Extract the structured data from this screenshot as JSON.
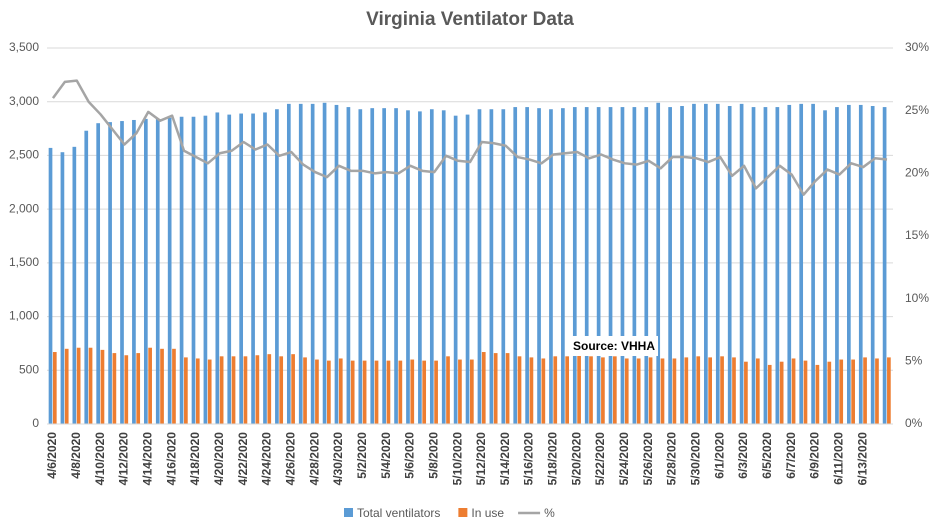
{
  "chart_data": {
    "type": "bar-line",
    "title": "Virginia Ventilator Data",
    "categories": [
      "4/6/2020",
      null,
      "4/8/2020",
      null,
      "4/10/2020",
      null,
      "4/12/2020",
      null,
      "4/14/2020",
      null,
      "4/16/2020",
      null,
      "4/18/2020",
      null,
      "4/20/2020",
      null,
      "4/22/2020",
      null,
      "4/24/2020",
      null,
      "4/26/2020",
      null,
      "4/28/2020",
      null,
      "4/30/2020",
      null,
      "5/2/2020",
      null,
      "5/4/2020",
      null,
      "5/6/2020",
      null,
      "5/8/2020",
      null,
      "5/10/2020",
      null,
      "5/12/2020",
      null,
      "5/14/2020",
      null,
      "5/16/2020",
      null,
      "5/18/2020",
      null,
      "5/20/2020",
      null,
      "5/22/2020",
      null,
      "5/24/2020",
      null,
      "5/26/2020",
      null,
      "5/28/2020",
      null,
      "5/30/2020",
      null,
      "6/1/2020",
      null,
      "6/3/2020",
      null,
      "6/5/2020",
      null,
      "6/7/2020",
      null,
      "6/9/2020",
      null,
      "6/11/2020",
      null,
      "6/13/2020",
      null,
      null
    ],
    "series": [
      {
        "name": "Total ventilators",
        "color": "#5b9bd5",
        "kind": "bar",
        "values": [
          2570,
          2530,
          2580,
          2730,
          2800,
          2810,
          2820,
          2830,
          2840,
          2840,
          2850,
          2860,
          2860,
          2870,
          2900,
          2880,
          2890,
          2890,
          2900,
          2930,
          2980,
          2980,
          2980,
          2990,
          2970,
          2950,
          2930,
          2940,
          2940,
          2940,
          2920,
          2910,
          2930,
          2920,
          2870,
          2880,
          2930,
          2930,
          2930,
          2950,
          2950,
          2940,
          2930,
          2940,
          2950,
          2950,
          2950,
          2950,
          2950,
          2950,
          2950,
          2990,
          2950,
          2960,
          2980,
          2980,
          2980,
          2960,
          2980,
          2950,
          2950,
          2950,
          2970,
          2980,
          2980,
          2920,
          2950,
          2970,
          2970,
          2960,
          2950
        ]
      },
      {
        "name": "In use",
        "color": "#ed7d31",
        "kind": "bar",
        "values": [
          670,
          700,
          710,
          710,
          690,
          660,
          640,
          660,
          710,
          700,
          700,
          620,
          610,
          600,
          630,
          630,
          630,
          640,
          650,
          630,
          650,
          620,
          600,
          590,
          610,
          590,
          590,
          590,
          590,
          590,
          600,
          590,
          590,
          630,
          600,
          600,
          670,
          660,
          660,
          630,
          620,
          610,
          630,
          630,
          640,
          630,
          620,
          630,
          610,
          610,
          620,
          610,
          610,
          620,
          630,
          620,
          630,
          620,
          580,
          610,
          550,
          580,
          610,
          590,
          550,
          580,
          600,
          600,
          620,
          610,
          620
        ]
      },
      {
        "name": "%",
        "color": "#a5a5a5",
        "kind": "line",
        "axis": "y2",
        "values": [
          26.0,
          27.3,
          27.4,
          25.7,
          24.7,
          23.5,
          22.3,
          23.2,
          24.9,
          24.2,
          24.6,
          21.8,
          21.3,
          20.8,
          21.6,
          21.8,
          22.5,
          21.9,
          22.3,
          21.4,
          21.7,
          20.7,
          20.1,
          19.7,
          20.6,
          20.2,
          20.2,
          20.0,
          20.1,
          20.0,
          20.6,
          20.2,
          20.1,
          21.4,
          21.0,
          20.9,
          22.5,
          22.4,
          22.2,
          21.3,
          21.1,
          20.8,
          21.5,
          21.6,
          21.7,
          21.2,
          21.5,
          21.1,
          20.8,
          20.7,
          21.0,
          20.4,
          21.3,
          21.3,
          21.2,
          20.9,
          21.3,
          19.8,
          20.6,
          18.8,
          19.7,
          20.6,
          19.9,
          18.3,
          19.4,
          20.3,
          19.9,
          20.8,
          20.5,
          21.2,
          21.1
        ]
      }
    ],
    "ylim": [
      0,
      3500
    ],
    "yticks": [
      0,
      500,
      {
        "value": 1000,
        "label": "1,000"
      },
      {
        "value": 1500,
        "label": "1,500"
      },
      {
        "value": 2000,
        "label": "2,000"
      },
      {
        "value": 2500,
        "label": "2,500"
      },
      {
        "value": 3000,
        "label": "3,000"
      },
      {
        "value": 3500,
        "label": "3,500"
      }
    ],
    "y2lim": [
      0,
      30
    ],
    "y2ticks": [
      {
        "value": 0,
        "label": "0%"
      },
      {
        "value": 5,
        "label": "5%"
      },
      {
        "value": 10,
        "label": "10%"
      },
      {
        "value": 15,
        "label": "15%"
      },
      {
        "value": 20,
        "label": "20%"
      },
      {
        "value": 25,
        "label": "25%"
      },
      {
        "value": 30,
        "label": "30%"
      }
    ],
    "grid": true,
    "legend": "bottom",
    "annotation": "Source: VHHA"
  }
}
